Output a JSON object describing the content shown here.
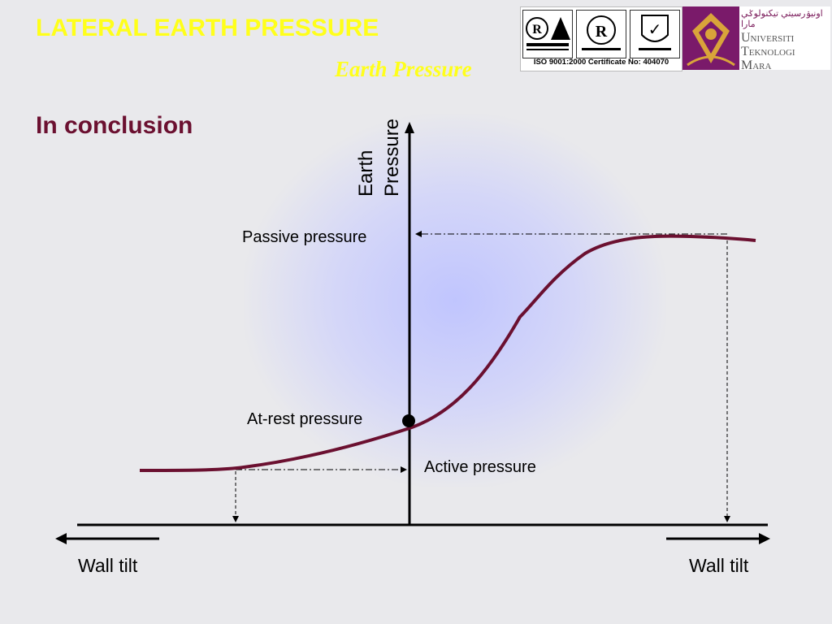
{
  "slide": {
    "title": "LATERAL EARTH PRESSURE",
    "subtitle": "Earth Pressure",
    "heading": "In conclusion"
  },
  "logos": {
    "certificate": "ISO 9001:2000 Certificate No: 404070",
    "university_line1": "Universiti",
    "university_line2": "Teknologi",
    "university_line3": "Mara",
    "university_jawi": "اونيۏرسيتي تيكنولوݢي مارا",
    "cert_marks": [
      "R",
      "R",
      "✓"
    ]
  },
  "diagram": {
    "y_axis_label_line1": "Earth",
    "y_axis_label_line2": "Pressure",
    "passive_label": "Passive pressure",
    "at_rest_label": "At-rest pressure",
    "active_label": "Active pressure",
    "left_tilt_label": "Wall tilt",
    "right_tilt_label": "Wall tilt"
  },
  "colors": {
    "title": "#ffff1a",
    "heading": "#6b1030",
    "curve": "#6b1030",
    "glow": "#bec3ff"
  }
}
